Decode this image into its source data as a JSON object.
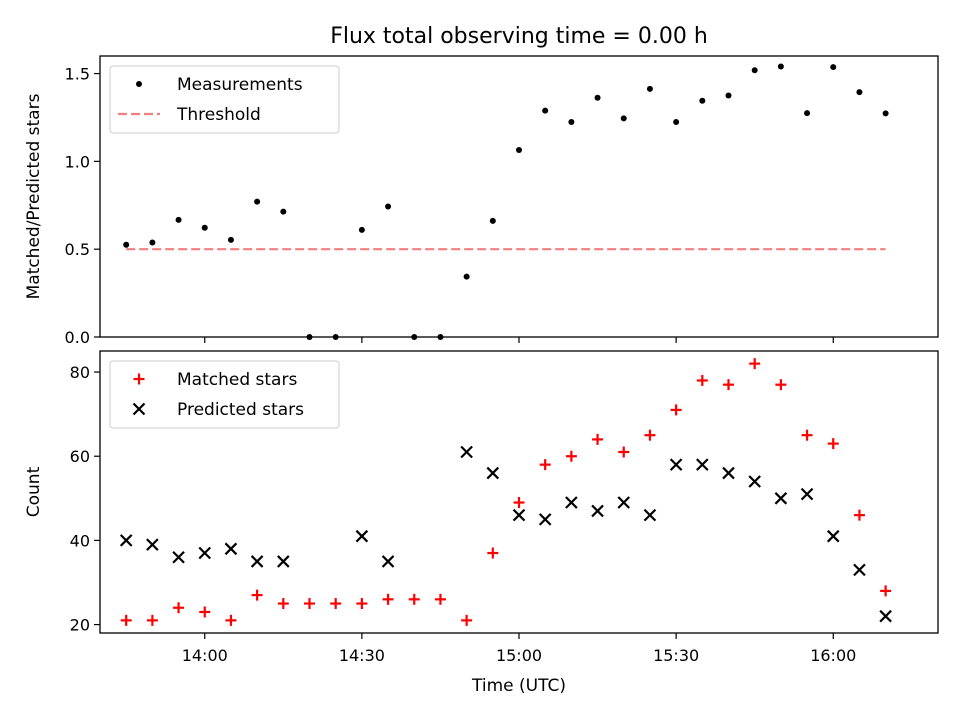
{
  "chart_data": [
    {
      "type": "scatter",
      "title": "Flux total observing time = 0.00 h",
      "ylabel": "Matched/Predicted stars",
      "xlabel": "",
      "ylim": [
        0,
        1.6
      ],
      "xlim": [
        "13:40",
        "16:20"
      ],
      "yticks": [
        "0.0",
        "0.5",
        "1.0",
        "1.5"
      ],
      "xtick_values": [
        "14:00",
        "14:30",
        "15:00",
        "15:30",
        "16:00"
      ],
      "show_xtick_labels": false,
      "grid": false,
      "legend_position": "upper-left",
      "series": [
        {
          "name": "Measurements",
          "marker": "dot",
          "color": "#000000",
          "x": [
            "13:45",
            "13:50",
            "13:55",
            "14:00",
            "14:05",
            "14:10",
            "14:15",
            "14:20",
            "14:25",
            "14:30",
            "14:35",
            "14:40",
            "14:45",
            "14:50",
            "14:55",
            "15:00",
            "15:05",
            "15:10",
            "15:15",
            "15:20",
            "15:25",
            "15:30",
            "15:35",
            "15:40",
            "15:45",
            "15:50",
            "15:55",
            "16:00",
            "16:05",
            "16:10"
          ],
          "y": [
            0.525,
            0.538,
            0.667,
            0.622,
            0.553,
            0.771,
            0.714,
            0.0,
            0.0,
            0.61,
            0.743,
            0.0,
            0.0,
            0.344,
            0.661,
            1.065,
            1.289,
            1.224,
            1.362,
            1.245,
            1.413,
            1.224,
            1.345,
            1.375,
            1.519,
            1.54,
            1.275,
            1.537,
            1.394,
            1.273
          ]
        },
        {
          "name": "Threshold",
          "line": "dashed",
          "color": "#f08080",
          "x": [
            "13:45",
            "16:10"
          ],
          "y": [
            0.5,
            0.5
          ]
        }
      ]
    },
    {
      "type": "scatter",
      "title": "",
      "ylabel": "Count",
      "xlabel": "Time (UTC)",
      "ylim": [
        18,
        85
      ],
      "xlim": [
        "13:40",
        "16:20"
      ],
      "yticks": [
        "20",
        "40",
        "60",
        "80"
      ],
      "xticks": [
        "14:00",
        "14:30",
        "15:00",
        "15:30",
        "16:00"
      ],
      "grid": false,
      "legend_position": "upper-left",
      "series": [
        {
          "name": "Matched stars",
          "marker": "plus",
          "color": "#ff0000",
          "x": [
            "13:45",
            "13:50",
            "13:55",
            "14:00",
            "14:05",
            "14:10",
            "14:15",
            "14:20",
            "14:25",
            "14:30",
            "14:35",
            "14:40",
            "14:45",
            "14:50",
            "14:55",
            "15:00",
            "15:05",
            "15:10",
            "15:15",
            "15:20",
            "15:25",
            "15:30",
            "15:35",
            "15:40",
            "15:45",
            "15:50",
            "15:55",
            "16:00",
            "16:05",
            "16:10"
          ],
          "y": [
            21,
            21,
            24,
            23,
            21,
            27,
            25,
            25,
            25,
            25,
            26,
            26,
            26,
            21,
            37,
            49,
            58,
            60,
            64,
            61,
            65,
            71,
            78,
            77,
            82,
            77,
            65,
            63,
            46,
            28
          ]
        },
        {
          "name": "Predicted stars",
          "marker": "x",
          "color": "#000000",
          "x": [
            "13:45",
            "13:50",
            "13:55",
            "14:00",
            "14:05",
            "14:10",
            "14:15",
            "14:30",
            "14:35",
            "14:50",
            "14:55",
            "15:00",
            "15:05",
            "15:10",
            "15:15",
            "15:20",
            "15:25",
            "15:30",
            "15:35",
            "15:40",
            "15:45",
            "15:50",
            "15:55",
            "16:00",
            "16:05",
            "16:10"
          ],
          "y": [
            40,
            39,
            36,
            37,
            38,
            35,
            35,
            41,
            35,
            61,
            56,
            46,
            45,
            49,
            47,
            49,
            46,
            58,
            58,
            56,
            54,
            50,
            51,
            41,
            33,
            22
          ]
        }
      ]
    }
  ]
}
